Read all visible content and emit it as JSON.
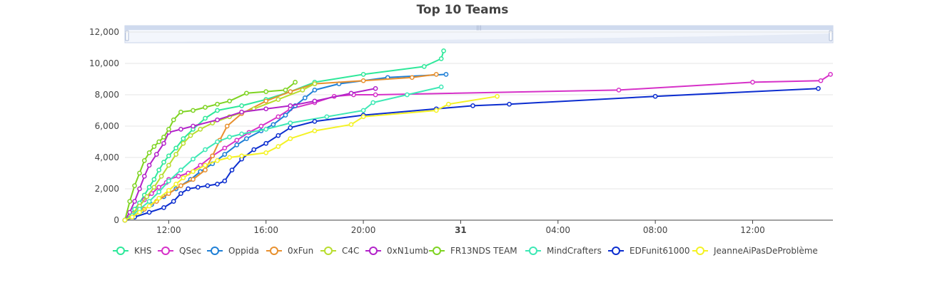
{
  "chart_data": {
    "type": "line",
    "title": "Top 10 Teams",
    "xlabel": "",
    "ylabel": "",
    "x_range": [
      10.2,
      39.3
    ],
    "ylim": [
      0,
      12500
    ],
    "y_ticks": [
      0,
      2000,
      4000,
      6000,
      8000,
      10000,
      12000
    ],
    "y_tick_labels": [
      "0",
      "2,000",
      "4,000",
      "6,000",
      "8,000",
      "10,000",
      "12,000"
    ],
    "x_ticks": [
      12,
      16,
      20,
      24,
      28,
      32,
      36
    ],
    "x_tick_labels": [
      "12:00",
      "16:00",
      "20:00",
      "31",
      "04:00",
      "08:00",
      "12:00"
    ],
    "x_tick_bold": [
      false,
      false,
      false,
      true,
      false,
      false,
      false
    ],
    "grid": true,
    "legend_position": "bottom",
    "range_slider": true,
    "series": [
      {
        "name": "KHS",
        "color": "#2ee89a",
        "x": [
          10.2,
          10.4,
          10.6,
          10.8,
          11.0,
          11.2,
          11.4,
          11.6,
          11.8,
          12.0,
          12.3,
          12.6,
          13.0,
          13.5,
          14.0,
          15.0,
          16.0,
          17.0,
          18.0,
          20.0,
          22.5,
          23.2,
          23.3
        ],
        "y": [
          0,
          300,
          700,
          1100,
          1600,
          2100,
          2600,
          3200,
          3700,
          4100,
          4600,
          5200,
          5800,
          6500,
          7000,
          7300,
          7700,
          8200,
          8800,
          9300,
          9800,
          10300,
          10800
        ]
      },
      {
        "name": "QSec",
        "color": "#d631c8",
        "x": [
          10.2,
          10.5,
          10.8,
          11.0,
          11.3,
          11.6,
          11.9,
          12.0,
          12.4,
          12.8,
          13.3,
          13.8,
          14.3,
          14.8,
          15.3,
          15.8,
          16.5,
          17.0,
          18.0,
          18.8,
          19.6,
          20.5,
          30.5,
          36.0,
          38.8,
          39.2
        ],
        "y": [
          0,
          400,
          900,
          1300,
          1700,
          2100,
          2400,
          2600,
          2800,
          3000,
          3500,
          4100,
          4600,
          5100,
          5600,
          6000,
          6600,
          7100,
          7500,
          7900,
          8000,
          8000,
          8300,
          8800,
          8900,
          9300
        ]
      },
      {
        "name": "Oppida",
        "color": "#1e7fd6",
        "x": [
          10.2,
          10.5,
          10.9,
          11.3,
          11.8,
          12.3,
          12.9,
          13.3,
          13.8,
          14.3,
          14.8,
          15.2,
          15.8,
          16.3,
          16.8,
          17.2,
          17.6,
          18.0,
          19.0,
          21.0,
          23.4
        ],
        "y": [
          0,
          200,
          600,
          1000,
          1500,
          2000,
          2600,
          3100,
          3600,
          4200,
          4800,
          5200,
          5700,
          6100,
          6700,
          7300,
          7800,
          8300,
          8700,
          9100,
          9300
        ]
      },
      {
        "name": "0xFun",
        "color": "#e8902e",
        "x": [
          10.2,
          10.6,
          11.0,
          11.5,
          12.0,
          12.5,
          13.0,
          13.5,
          13.8,
          14.1,
          14.4,
          15.0,
          16.0,
          17.0,
          18.0,
          20.0,
          22.0,
          23.0
        ],
        "y": [
          0,
          300,
          700,
          1200,
          1700,
          2200,
          2600,
          3200,
          4100,
          5100,
          6000,
          6800,
          7600,
          8200,
          8700,
          8900,
          9100,
          9300
        ]
      },
      {
        "name": "C4C",
        "color": "#b8dd2e",
        "x": [
          10.2,
          10.5,
          10.8,
          11.1,
          11.4,
          11.7,
          12.0,
          12.3,
          12.6,
          12.9,
          13.3,
          13.8,
          14.5,
          15.5,
          16.5,
          17.5,
          18.0
        ],
        "y": [
          0,
          400,
          900,
          1500,
          2100,
          2800,
          3500,
          4200,
          4900,
          5400,
          5800,
          6200,
          6600,
          7100,
          7700,
          8300,
          8700
        ]
      },
      {
        "name": "0xN1umb",
        "color": "#b222c9",
        "x": [
          10.2,
          10.4,
          10.6,
          10.8,
          11.0,
          11.2,
          11.5,
          11.8,
          12.0,
          12.5,
          13.0,
          14.0,
          15.0,
          16.0,
          17.0,
          18.0,
          19.5,
          20.5
        ],
        "y": [
          0,
          500,
          1200,
          2000,
          2800,
          3500,
          4200,
          4900,
          5600,
          5800,
          6000,
          6400,
          6900,
          7100,
          7300,
          7600,
          8100,
          8400
        ]
      },
      {
        "name": "FR13NDS TEAM",
        "color": "#7ed321",
        "x": [
          10.2,
          10.4,
          10.6,
          10.8,
          11.0,
          11.2,
          11.4,
          11.6,
          11.8,
          12.0,
          12.2,
          12.5,
          13.0,
          13.5,
          14.0,
          14.5,
          15.2,
          16.0,
          16.8,
          17.2
        ],
        "y": [
          0,
          1200,
          2200,
          3000,
          3800,
          4300,
          4700,
          5000,
          5300,
          5800,
          6400,
          6900,
          7000,
          7200,
          7400,
          7600,
          8100,
          8200,
          8300,
          8800
        ]
      },
      {
        "name": "MindCrafters",
        "color": "#3de8b5",
        "x": [
          10.2,
          10.5,
          10.8,
          11.2,
          11.6,
          12.0,
          12.5,
          13.0,
          13.5,
          14.0,
          14.5,
          15.0,
          16.0,
          17.0,
          18.5,
          20.0,
          20.4,
          21.8,
          23.2
        ],
        "y": [
          0,
          300,
          700,
          1200,
          1800,
          2500,
          3200,
          3900,
          4500,
          5000,
          5300,
          5500,
          5800,
          6200,
          6600,
          7000,
          7500,
          8000,
          8500
        ]
      },
      {
        "name": "EDFunit61000",
        "color": "#0b2dcf",
        "x": [
          10.2,
          10.6,
          11.2,
          11.8,
          12.2,
          12.5,
          12.8,
          13.2,
          13.6,
          14.0,
          14.3,
          14.6,
          15.0,
          15.5,
          16.0,
          16.5,
          17.0,
          18.0,
          20.0,
          23.0,
          24.5,
          26.0,
          32.0,
          38.7
        ],
        "y": [
          0,
          200,
          500,
          800,
          1200,
          1700,
          2000,
          2100,
          2200,
          2300,
          2500,
          3200,
          3900,
          4500,
          4900,
          5400,
          5900,
          6300,
          6700,
          7100,
          7300,
          7400,
          7900,
          8400
        ]
      },
      {
        "name": "JeanneAiPasDeProblème",
        "color": "#f4f224",
        "x": [
          10.2,
          10.5,
          10.8,
          11.2,
          11.6,
          12.0,
          12.3,
          12.6,
          13.0,
          13.5,
          14.0,
          14.5,
          15.0,
          16.0,
          16.5,
          17.0,
          18.0,
          19.5,
          20.0,
          23.0,
          23.5,
          25.5
        ],
        "y": [
          0,
          200,
          500,
          900,
          1400,
          1900,
          2300,
          2700,
          3100,
          3500,
          3800,
          4000,
          4100,
          4300,
          4700,
          5200,
          5700,
          6100,
          6600,
          7000,
          7400,
          7900
        ]
      }
    ]
  }
}
